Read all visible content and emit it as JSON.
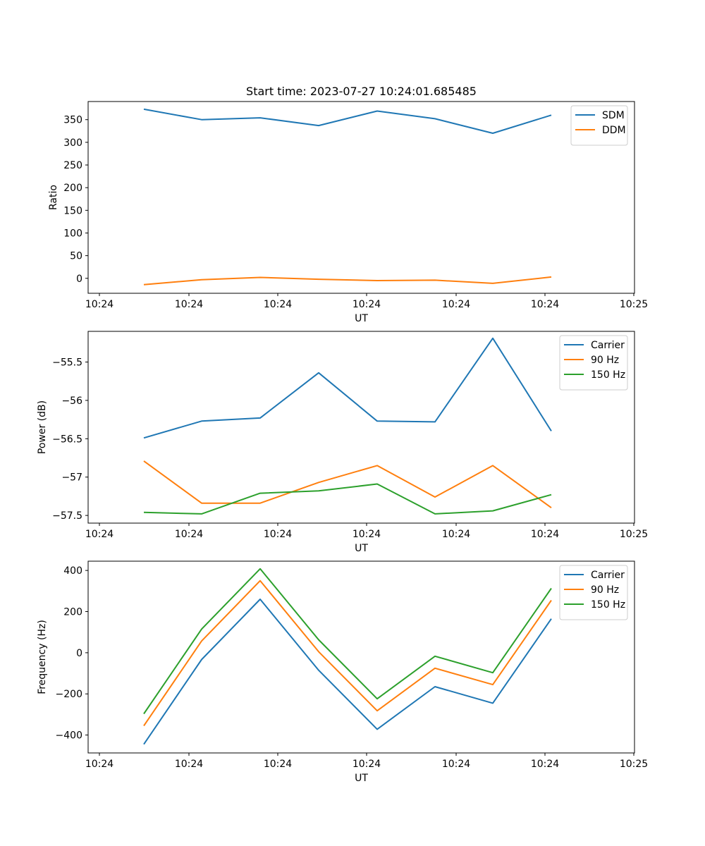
{
  "chart_data": [
    {
      "type": "line",
      "title": "Start time: 2023-07-27 10:24:01.685485",
      "xlabel": "UT",
      "ylabel": "Ratio",
      "x_tick_labels": [
        "10:24",
        "10:24",
        "10:24",
        "10:24",
        "10:24",
        "10:24",
        "10:25"
      ],
      "ylim": [
        -33,
        390
      ],
      "y_ticks": [
        0,
        50,
        100,
        150,
        200,
        250,
        300,
        350
      ],
      "legend_position": "top-right",
      "series": [
        {
          "name": "SDM",
          "color": "#1f77b4",
          "values": [
            373,
            350,
            354,
            337,
            369,
            352,
            320,
            360
          ]
        },
        {
          "name": "DDM",
          "color": "#ff7f0e",
          "values": [
            -14,
            -3,
            2,
            -2,
            -5,
            -4,
            -11,
            3
          ]
        }
      ]
    },
    {
      "type": "line",
      "title": "",
      "xlabel": "UT",
      "ylabel": "Power (dB)",
      "x_tick_labels": [
        "10:24",
        "10:24",
        "10:24",
        "10:24",
        "10:24",
        "10:24",
        "10:25"
      ],
      "ylim": [
        -57.6,
        -55.1
      ],
      "y_ticks": [
        -57.5,
        -57.0,
        -56.5,
        -56.0,
        -55.5
      ],
      "legend_position": "top-right",
      "series": [
        {
          "name": "Carrier",
          "color": "#1f77b4",
          "values": [
            -56.49,
            -56.27,
            -56.23,
            -55.64,
            -56.27,
            -56.28,
            -55.19,
            -56.4
          ]
        },
        {
          "name": "90 Hz",
          "color": "#ff7f0e",
          "values": [
            -56.79,
            -57.34,
            -57.34,
            -57.07,
            -56.85,
            -57.26,
            -56.85,
            -57.4
          ]
        },
        {
          "name": "150 Hz",
          "color": "#2ca02c",
          "values": [
            -57.46,
            -57.48,
            -57.21,
            -57.18,
            -57.09,
            -57.48,
            -57.44,
            -57.23
          ]
        }
      ]
    },
    {
      "type": "line",
      "title": "",
      "xlabel": "UT",
      "ylabel": "Frequency (Hz)",
      "x_tick_labels": [
        "10:24",
        "10:24",
        "10:24",
        "10:24",
        "10:24",
        "10:24",
        "10:25"
      ],
      "ylim": [
        -487,
        445
      ],
      "y_ticks": [
        -400,
        -200,
        0,
        200,
        400
      ],
      "legend_position": "top-right",
      "series": [
        {
          "name": "Carrier",
          "color": "#1f77b4",
          "values": [
            -445,
            -33,
            260,
            -85,
            -372,
            -165,
            -245,
            165
          ]
        },
        {
          "name": "90 Hz",
          "color": "#ff7f0e",
          "values": [
            -355,
            57,
            350,
            5,
            -282,
            -75,
            -155,
            255
          ]
        },
        {
          "name": "150 Hz",
          "color": "#2ca02c",
          "values": [
            -297,
            115,
            408,
            63,
            -224,
            -17,
            -97,
            313
          ]
        }
      ]
    }
  ]
}
